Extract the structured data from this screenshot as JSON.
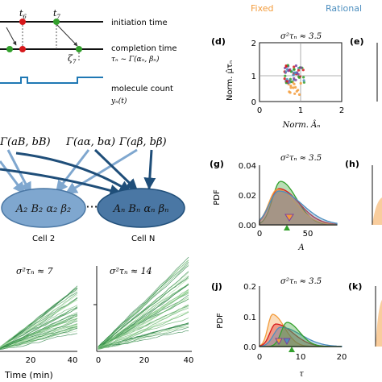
{
  "timeline": {
    "t6": "t",
    "t6_sub": "6",
    "t7": "t",
    "t7_sub": "7",
    "zeta7": "ζ",
    "zeta7_sub": "7",
    "initiation": "initiation time",
    "completion": "completion time",
    "completion_formula": "τₙ ~ Γ(αₙ, βₙ)",
    "molecule": "molecule count",
    "molecule_formula": "yₙ(t)"
  },
  "hierarchy": {
    "gamma_left": "Γ(aB, bB)",
    "gamma_mid": "Γ(aα, bα)",
    "gamma_right": "Γ(aβ, bβ)",
    "cell2_params": "A₂ B₂ α₂ β₂",
    "cellN_params": "Aₙ Bₙ αₙ βₙ",
    "dots": "···",
    "cell2": "Cell 2",
    "cellN": "Cell N"
  },
  "legend": {
    "fixed": "Fixed",
    "rational": "Rational",
    "fixed_color": "#f39c3c",
    "rational_color": "#4d8fbf"
  },
  "panels": {
    "d": {
      "letter": "(d)",
      "title": "σ²τₙ ≈ 3.5",
      "ylabel": "Norm. μ̂τₙ",
      "xlabel": "Norm. Âₙ"
    },
    "e": {
      "letter": "(e)"
    },
    "g": {
      "letter": "(g)",
      "title": "σ²τₙ ≈ 3.5",
      "ylabel": "PDF",
      "xlabel": "A"
    },
    "h": {
      "letter": "(h)"
    },
    "j": {
      "letter": "(j)",
      "title": "σ²τₙ ≈ 3.5",
      "ylabel": "PDF",
      "xlabel": "τ"
    },
    "k": {
      "letter": "(k)"
    },
    "traj1": {
      "title": "σ²τₙ ≈ 7"
    },
    "traj2": {
      "title": "σ²τₙ ≈ 14"
    },
    "traj_xlabel": "Time (min)"
  },
  "chart_data": [
    {
      "type": "scatter",
      "panel": "d",
      "xlim": [
        0,
        2
      ],
      "ylim": [
        0,
        2
      ],
      "xticks": [
        "0",
        "1",
        "2"
      ],
      "yticks": [
        "0",
        "1",
        "2"
      ]
    },
    {
      "type": "area",
      "panel": "g",
      "xlim": [
        0,
        80
      ],
      "ylim": [
        0,
        0.04
      ],
      "xticks": [
        "0",
        "50"
      ],
      "yticks": [
        "0.00",
        "0.02",
        "0.04"
      ]
    },
    {
      "type": "area",
      "panel": "j",
      "xlim": [
        0,
        20
      ],
      "ylim": [
        0,
        0.2
      ],
      "xticks": [
        "0",
        "10",
        "20"
      ],
      "yticks": [
        "0.0",
        "0.1",
        "0.2"
      ]
    },
    {
      "type": "line",
      "panel": "traj1",
      "xlim": [
        0,
        40
      ],
      "xticks": [
        "20",
        "40"
      ]
    },
    {
      "type": "line",
      "panel": "traj2",
      "xlim": [
        0,
        40
      ],
      "xticks": [
        "0",
        "20",
        "40"
      ]
    }
  ]
}
